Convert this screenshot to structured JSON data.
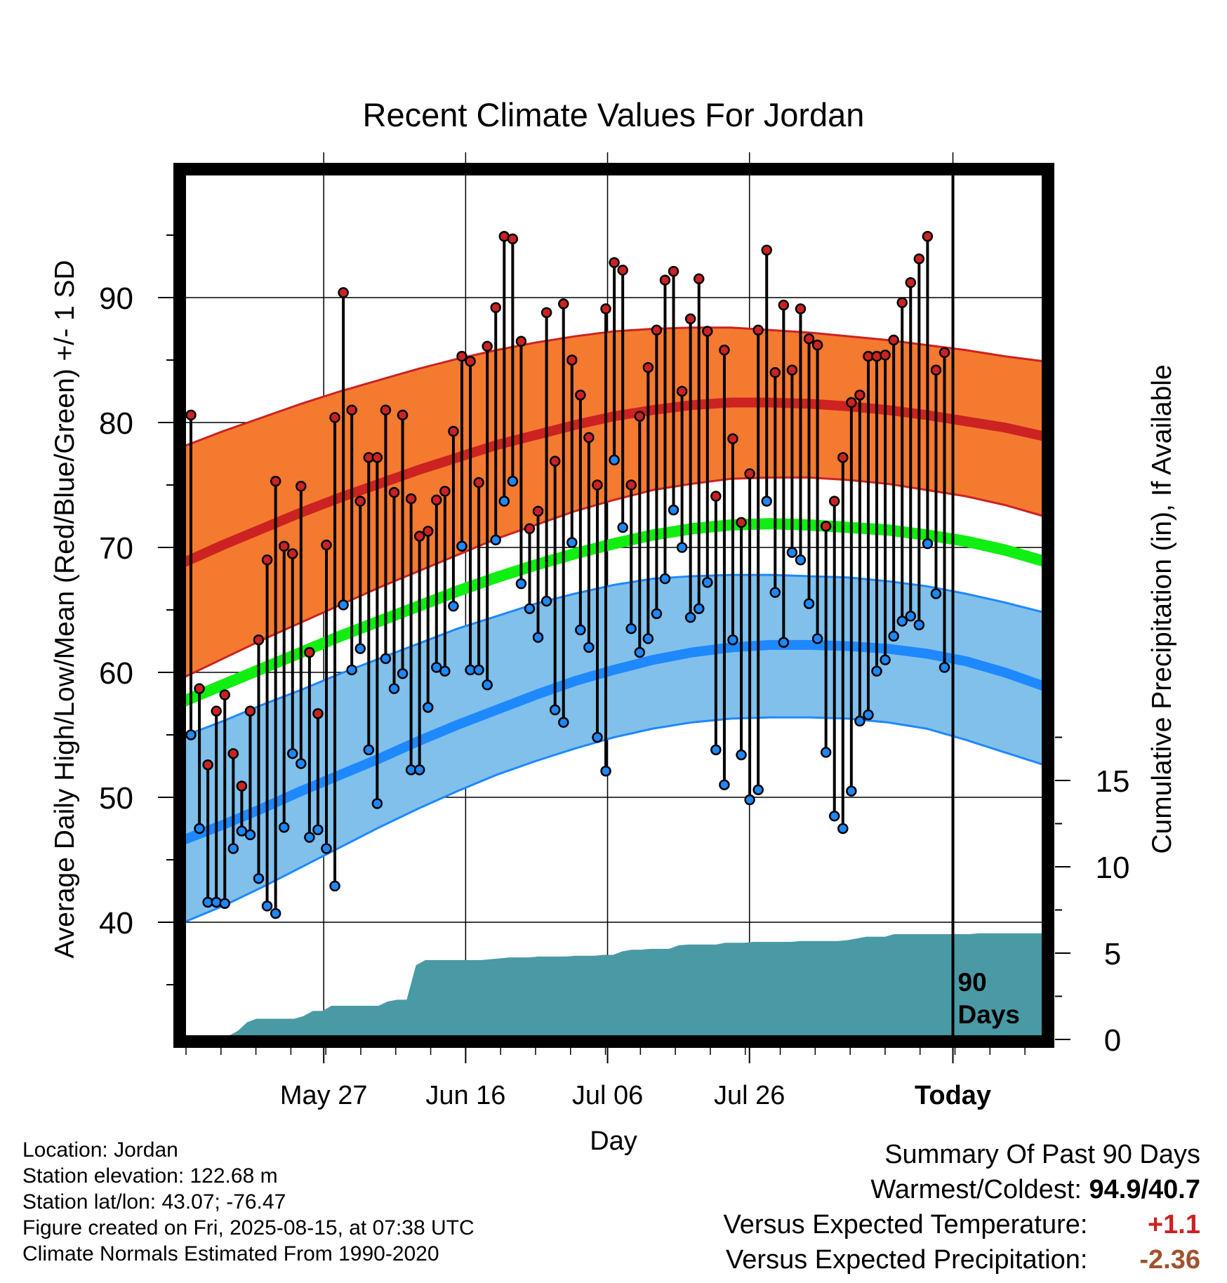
{
  "chart_data": {
    "type": "line",
    "title": "Recent Climate Values For Jordan",
    "xlabel": "Day",
    "ylabel": "Average Daily High/Low/Mean (Red/Blue/Green) +/- 1 SD",
    "y2label": "Cumulative Precipitation (in), If Available",
    "xticks": [
      "May 27",
      "Jun 16",
      "Jul 06",
      "Jul 26",
      "Today"
    ],
    "ylim": [
      30,
      100
    ],
    "yticks": [
      40,
      50,
      60,
      70,
      80,
      90
    ],
    "y2lim": [
      0,
      30
    ],
    "y2ticks": [
      0,
      5,
      10,
      15
    ],
    "today_label": "90\nDays",
    "grid": true,
    "colors": {
      "high": "#cc2222",
      "low": "#1e88ff",
      "mean": "#11ee11",
      "high_band": "#f47a30",
      "low_band": "#80c0ea",
      "precip": "#4a9aa5"
    },
    "daily_high": [
      80.6,
      58.7,
      52.6,
      56.9,
      58.2,
      53.5,
      50.9,
      56.9,
      62.6,
      69.0,
      75.3,
      70.1,
      69.5,
      74.9,
      61.6,
      56.7,
      70.2,
      80.4,
      90.4,
      81.0,
      73.7,
      77.2,
      77.2,
      81.0,
      74.4,
      80.6,
      73.9,
      70.9,
      71.3,
      73.8,
      74.5,
      79.3,
      85.3,
      84.9,
      75.2,
      86.1,
      89.2,
      94.9,
      94.7,
      86.5,
      71.5,
      72.9,
      88.8,
      76.9,
      89.5,
      85.0,
      82.2,
      78.8,
      75.0,
      89.1,
      92.8,
      92.2,
      75.0,
      80.5,
      84.4,
      87.4,
      91.4,
      92.1,
      82.5,
      88.3,
      91.5,
      87.3,
      74.1,
      85.8,
      78.7,
      72.0,
      75.9,
      87.4,
      93.8,
      84.0,
      89.4,
      84.2,
      89.1,
      86.7,
      86.2,
      71.7,
      73.7,
      77.2,
      81.6,
      82.2,
      85.3,
      85.3,
      85.4,
      86.6,
      89.6,
      91.2,
      93.1,
      94.9,
      84.2,
      85.6
    ],
    "daily_low": [
      55.0,
      47.5,
      41.6,
      41.6,
      41.5,
      45.9,
      47.3,
      47.0,
      43.5,
      41.3,
      40.7,
      47.6,
      53.5,
      52.7,
      46.8,
      47.4,
      45.9,
      42.9,
      65.4,
      60.2,
      61.9,
      53.8,
      49.5,
      61.1,
      58.7,
      59.9,
      52.2,
      52.2,
      57.2,
      60.4,
      60.1,
      65.3,
      70.1,
      60.2,
      60.2,
      59.0,
      70.6,
      73.7,
      75.3,
      67.1,
      65.1,
      62.8,
      65.7,
      57.0,
      56.0,
      70.4,
      63.4,
      62.0,
      54.8,
      52.1,
      77.0,
      71.6,
      63.5,
      61.6,
      62.7,
      64.7,
      67.5,
      73.0,
      70.0,
      64.4,
      65.1,
      67.2,
      53.8,
      51.0,
      62.6,
      53.4,
      49.8,
      50.6,
      73.7,
      66.4,
      62.4,
      69.6,
      69.0,
      65.5,
      62.7,
      53.6,
      48.5,
      47.5,
      50.5,
      56.1,
      56.6,
      60.1,
      61.0,
      62.9,
      64.1,
      64.5,
      63.8,
      70.3,
      66.3,
      60.4
    ],
    "normal_high": [
      68.8,
      70.2,
      71.5,
      72.8,
      74.0,
      75.1,
      76.2,
      77.2,
      78.2,
      79.0,
      79.8,
      80.5,
      81.0,
      81.4,
      81.6,
      81.6,
      81.5,
      81.3,
      81.0,
      80.6,
      80.1,
      79.6,
      78.9
    ],
    "normal_low": [
      46.6,
      47.8,
      49.1,
      50.5,
      51.8,
      53.1,
      54.5,
      55.8,
      57.0,
      58.2,
      59.3,
      60.2,
      61.0,
      61.6,
      62.0,
      62.2,
      62.2,
      62.1,
      61.9,
      61.5,
      60.9,
      60.0,
      58.9
    ],
    "normal_mean": [
      57.7,
      59.0,
      60.3,
      61.6,
      62.9,
      64.1,
      65.3,
      66.5,
      67.6,
      68.6,
      69.5,
      70.3,
      71.0,
      71.5,
      71.8,
      71.9,
      71.8,
      71.6,
      71.4,
      71.0,
      70.5,
      69.8,
      68.9
    ],
    "high_sd_band": [
      [
        59.6,
        78.1
      ],
      [
        61.1,
        79.3
      ],
      [
        62.6,
        80.4
      ],
      [
        64.0,
        81.5
      ],
      [
        65.4,
        82.5
      ],
      [
        66.8,
        83.4
      ],
      [
        68.1,
        84.3
      ],
      [
        69.4,
        85.1
      ],
      [
        70.7,
        85.8
      ],
      [
        71.8,
        86.4
      ],
      [
        72.9,
        86.9
      ],
      [
        73.8,
        87.3
      ],
      [
        74.6,
        87.5
      ],
      [
        75.1,
        87.6
      ],
      [
        75.5,
        87.6
      ],
      [
        75.6,
        87.4
      ],
      [
        75.6,
        87.2
      ],
      [
        75.4,
        86.9
      ],
      [
        75.1,
        86.6
      ],
      [
        74.6,
        86.2
      ],
      [
        74.1,
        85.8
      ],
      [
        73.4,
        85.3
      ],
      [
        72.5,
        84.9
      ]
    ],
    "low_sd_band": [
      [
        40.0,
        54.9
      ],
      [
        41.3,
        56.1
      ],
      [
        42.8,
        57.4
      ],
      [
        44.4,
        58.6
      ],
      [
        46.0,
        59.9
      ],
      [
        47.6,
        61.1
      ],
      [
        49.1,
        62.3
      ],
      [
        50.5,
        63.5
      ],
      [
        51.8,
        64.5
      ],
      [
        52.9,
        65.5
      ],
      [
        53.9,
        66.3
      ],
      [
        54.8,
        67.0
      ],
      [
        55.5,
        67.5
      ],
      [
        56.0,
        67.7
      ],
      [
        56.3,
        67.8
      ],
      [
        56.4,
        67.8
      ],
      [
        56.4,
        67.7
      ],
      [
        56.3,
        67.6
      ],
      [
        56.0,
        67.3
      ],
      [
        55.5,
        66.9
      ],
      [
        54.6,
        66.3
      ],
      [
        53.6,
        65.6
      ],
      [
        52.6,
        64.8
      ]
    ],
    "cumulative_precip": [
      0.05,
      0.05,
      0.05,
      0.05,
      0.2,
      0.5,
      1.0,
      1.2,
      1.2,
      1.2,
      1.2,
      1.2,
      1.35,
      1.65,
      1.65,
      1.95,
      1.95,
      1.95,
      1.95,
      1.95,
      1.95,
      2.2,
      2.3,
      2.3,
      4.3,
      4.6,
      4.6,
      4.6,
      4.6,
      4.6,
      4.6,
      4.6,
      4.65,
      4.7,
      4.75,
      4.75,
      4.75,
      4.8,
      4.8,
      4.8,
      4.8,
      4.85,
      4.85,
      4.85,
      4.9,
      4.9,
      5.1,
      5.2,
      5.2,
      5.25,
      5.25,
      5.25,
      5.45,
      5.5,
      5.5,
      5.5,
      5.5,
      5.6,
      5.6,
      5.6,
      5.65,
      5.65,
      5.65,
      5.65,
      5.65,
      5.7,
      5.7,
      5.7,
      5.7,
      5.7,
      5.75,
      5.85,
      5.95,
      5.95,
      5.95,
      6.1,
      6.1,
      6.1,
      6.1,
      6.1,
      6.1,
      6.1,
      6.1,
      6.1,
      6.15,
      6.15,
      6.15,
      6.15,
      6.15,
      6.15
    ]
  },
  "info": {
    "location": "Location: Jordan",
    "elevation": "Station elevation: 122.68 m",
    "latlon": "Station lat/lon: 43.07; -76.47",
    "created": "Figure created on Fri, 2025-08-15, at 07:38 UTC",
    "normals": "Climate Normals Estimated From 1990-2020"
  },
  "summary": {
    "title": "Summary Of Past 90 Days",
    "warmest_coldest_label": "Warmest/Coldest:",
    "warmest_coldest_value": "94.9/40.7",
    "temp_label": "Versus Expected Temperature:",
    "temp_value": "+1.1",
    "precip_label": "Versus Expected Precipitation:",
    "precip_value": "-2.36"
  }
}
